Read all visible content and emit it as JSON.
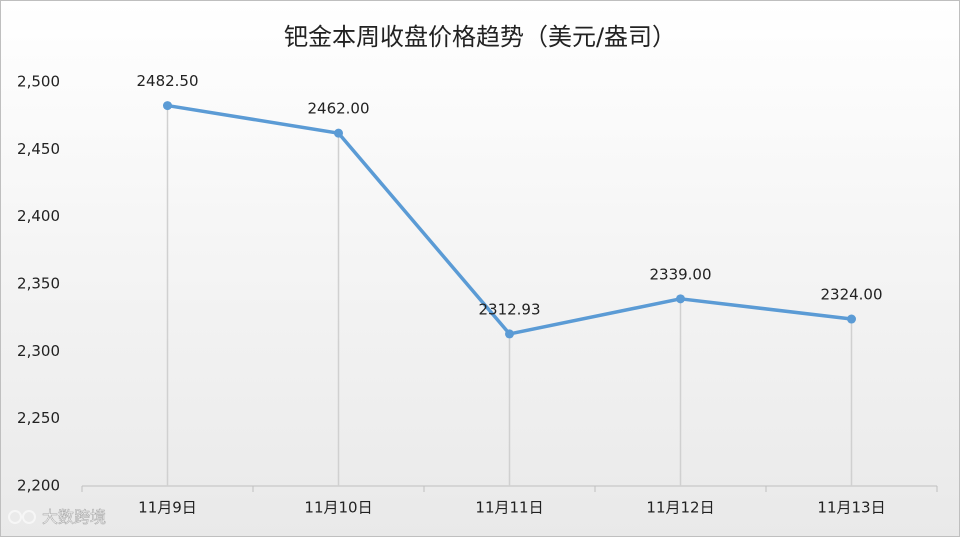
{
  "chart_data": {
    "type": "line",
    "title": "钯金本周收盘价格趋势（美元/盎司）",
    "categories": [
      "11月9日",
      "11月10日",
      "11月11日",
      "11月12日",
      "11月13日"
    ],
    "values": [
      2482.5,
      2462,
      2312.93,
      2339,
      2324
    ],
    "value_labels": [
      "2482.50",
      "2462.00",
      "2312.93",
      "2339.00",
      "2324.00"
    ],
    "color": "#5b9bd5",
    "ylim": [
      2200,
      2500
    ],
    "yticks": [
      {
        "value": 2200,
        "label": "2,200"
      },
      {
        "value": 2250,
        "label": "2,250"
      },
      {
        "value": 2300,
        "label": "2,300"
      },
      {
        "value": 2350,
        "label": "2,350"
      },
      {
        "value": 2400,
        "label": "2,400"
      },
      {
        "value": 2450,
        "label": "2,450"
      },
      {
        "value": 2500,
        "label": "2,500"
      }
    ],
    "drop_lines": true,
    "watermark": "大数跨境"
  }
}
